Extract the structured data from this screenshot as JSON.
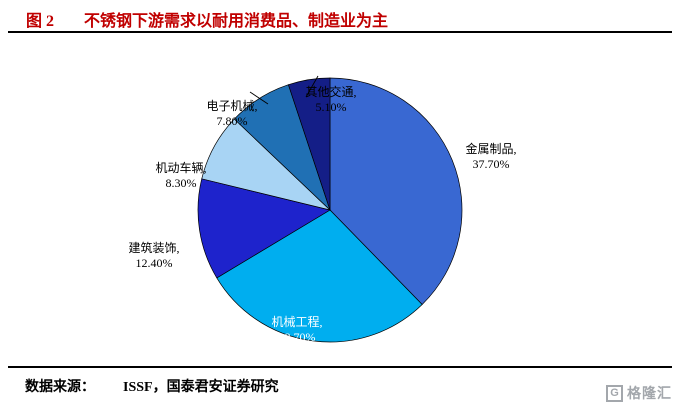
{
  "header": {
    "figure_label": "图 2",
    "title": "不锈钢下游需求以耐用消费品、制造业为主"
  },
  "chart_data": {
    "type": "pie",
    "title": "不锈钢下游需求以耐用消费品、制造业为主",
    "values_unit": "%",
    "legend": "none",
    "labels": "category-name-with-percent",
    "direction": "clockwise",
    "start_angle_deg": 0,
    "categories": [
      "金属制品",
      "机械工程",
      "建筑装饰",
      "机动车辆",
      "电子机械",
      "其他交通"
    ],
    "values": [
      37.7,
      28.7,
      12.4,
      8.3,
      7.8,
      5.1
    ],
    "slices": [
      {
        "id": "metal-products",
        "name": "金属制品",
        "value": 37.7,
        "label_line1": "金属制品,",
        "label_line2": "37.70%",
        "color": "#3968d2"
      },
      {
        "id": "machinery-engineering",
        "name": "机械工程",
        "value": 28.7,
        "label_line1": "机械工程,",
        "label_line2": "28.70%",
        "color": "#00aeef"
      },
      {
        "id": "construction-decoration",
        "name": "建筑装饰",
        "value": 12.4,
        "label_line1": "建筑装饰,",
        "label_line2": "12.40%",
        "color": "#1e23cc"
      },
      {
        "id": "motor-vehicles",
        "name": "机动车辆",
        "value": 8.3,
        "label_line1": "机动车辆,",
        "label_line2": "8.30%",
        "color": "#a8d4f4"
      },
      {
        "id": "electronic-machinery",
        "name": "电子机械",
        "value": 7.8,
        "label_line1": "电子机械,",
        "label_line2": "7.80%",
        "color": "#2070b4"
      },
      {
        "id": "other-transport",
        "name": "其他交通",
        "value": 5.1,
        "label_line1": "其他交通,",
        "label_line2": "5.10%",
        "color": "#141e87"
      }
    ]
  },
  "footer": {
    "source_label": "数据来源：",
    "source_text": "ISSF，国泰君安证券研究"
  },
  "logo": {
    "icon_letter": "G",
    "text": "格隆汇"
  }
}
